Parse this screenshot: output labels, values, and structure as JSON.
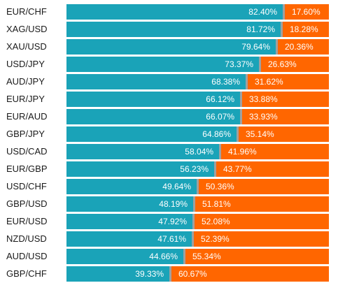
{
  "colors": {
    "long": "#1aa3b8",
    "short": "#ff6600",
    "gap": "#a0a0a0"
  },
  "chart_data": {
    "type": "bar",
    "orientation": "horizontal",
    "stacked": true,
    "categories": [
      "EUR/CHF",
      "XAG/USD",
      "XAU/USD",
      "USD/JPY",
      "AUD/JPY",
      "EUR/JPY",
      "EUR/AUD",
      "GBP/JPY",
      "USD/CAD",
      "EUR/GBP",
      "USD/CHF",
      "GBP/USD",
      "EUR/USD",
      "NZD/USD",
      "AUD/USD",
      "GBP/CHF"
    ],
    "series": [
      {
        "values": [
          82.4,
          81.72,
          79.64,
          73.37,
          68.38,
          66.12,
          66.07,
          64.86,
          58.04,
          56.23,
          49.64,
          48.19,
          47.92,
          47.61,
          44.66,
          39.33
        ]
      },
      {
        "values": [
          17.6,
          18.28,
          20.36,
          26.63,
          31.62,
          33.88,
          33.93,
          35.14,
          41.96,
          43.77,
          50.36,
          51.81,
          52.08,
          52.39,
          55.34,
          60.67
        ]
      }
    ],
    "labels": {
      "long": [
        "82.40%",
        "81.72%",
        "79.64%",
        "73.37%",
        "68.38%",
        "66.12%",
        "66.07%",
        "64.86%",
        "58.04%",
        "56.23%",
        "49.64%",
        "48.19%",
        "47.92%",
        "47.61%",
        "44.66%",
        "39.33%"
      ],
      "short": [
        "17.60%",
        "18.28%",
        "20.36%",
        "26.63%",
        "31.62%",
        "33.88%",
        "33.93%",
        "35.14%",
        "41.96%",
        "43.77%",
        "50.36%",
        "51.81%",
        "52.08%",
        "52.39%",
        "55.34%",
        "60.67%"
      ]
    },
    "xlim": [
      0,
      100
    ]
  }
}
